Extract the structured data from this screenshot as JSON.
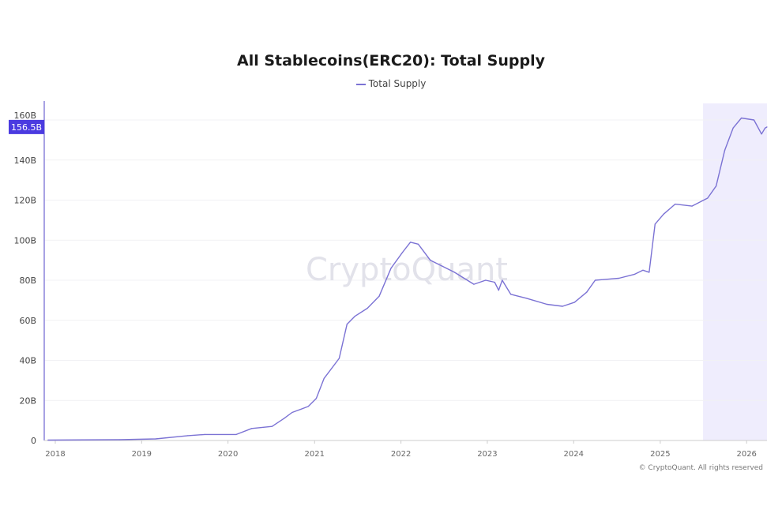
{
  "chart_data": {
    "type": "line",
    "title": "All Stablecoins(ERC20): Total Supply",
    "legend": {
      "position": "top-center",
      "entries": [
        "Total Supply"
      ]
    },
    "series": [
      {
        "name": "Total Supply",
        "color": "#7b72d4",
        "points": [
          [
            "2017-12-01",
            0.2
          ],
          [
            "2018-10-01",
            0.4
          ],
          [
            "2019-03-01",
            0.8
          ],
          [
            "2019-07-15",
            2.4
          ],
          [
            "2019-09-25",
            3
          ],
          [
            "2020-02-05",
            3
          ],
          [
            "2020-04-10",
            6
          ],
          [
            "2020-07-05",
            7
          ],
          [
            "2020-08-25",
            11
          ],
          [
            "2020-09-28",
            14
          ],
          [
            "2020-12-05",
            17
          ],
          [
            "2021-01-08",
            21
          ],
          [
            "2021-02-10",
            31
          ],
          [
            "2021-04-15",
            41
          ],
          [
            "2021-05-18",
            58
          ],
          [
            "2021-06-20",
            62
          ],
          [
            "2021-08-12",
            66
          ],
          [
            "2021-10-01",
            72
          ],
          [
            "2021-11-20",
            86
          ],
          [
            "2022-01-08",
            94
          ],
          [
            "2022-02-10",
            99
          ],
          [
            "2022-03-15",
            98
          ],
          [
            "2022-05-05",
            90
          ],
          [
            "2022-06-25",
            87
          ],
          [
            "2022-08-15",
            84
          ],
          [
            "2022-11-05",
            78
          ],
          [
            "2022-12-25",
            80
          ],
          [
            "2023-02-01",
            79
          ],
          [
            "2023-02-18",
            75
          ],
          [
            "2023-03-05",
            80
          ],
          [
            "2023-04-10",
            73
          ],
          [
            "2023-06-15",
            71
          ],
          [
            "2023-09-10",
            68
          ],
          [
            "2023-11-15",
            67
          ],
          [
            "2024-01-05",
            69
          ],
          [
            "2024-02-25",
            74
          ],
          [
            "2024-04-01",
            80
          ],
          [
            "2024-07-10",
            81
          ],
          [
            "2024-09-15",
            83
          ],
          [
            "2024-10-20",
            85
          ],
          [
            "2024-11-15",
            84
          ],
          [
            "2024-12-10",
            108
          ],
          [
            "2025-01-15",
            113
          ],
          [
            "2025-03-05",
            118
          ],
          [
            "2025-05-15",
            117
          ],
          [
            "2025-07-20",
            121
          ],
          [
            "2025-08-25",
            127
          ],
          [
            "2025-10-01",
            145
          ],
          [
            "2025-11-05",
            156
          ],
          [
            "2025-12-10",
            161
          ],
          [
            "2026-02-01",
            160
          ],
          [
            "2026-03-05",
            153
          ],
          [
            "2026-03-20",
            156
          ],
          [
            "2026-03-28",
            156.5
          ]
        ]
      }
    ],
    "current_value_label": "156.5B",
    "x_ticks": [
      "2018",
      "2019",
      "2020",
      "2021",
      "2022",
      "2023",
      "2024",
      "2025",
      "2026"
    ],
    "y_ticks": [
      {
        "value": 0,
        "label": "0"
      },
      {
        "value": 20,
        "label": "20B"
      },
      {
        "value": 40,
        "label": "40B"
      },
      {
        "value": 60,
        "label": "60B"
      },
      {
        "value": 80,
        "label": "80B"
      },
      {
        "value": 100,
        "label": "100B"
      },
      {
        "value": 120,
        "label": "120B"
      },
      {
        "value": 140,
        "label": "140B"
      },
      {
        "value": 160,
        "label": "160B"
      }
    ],
    "ylim": [
      0,
      160
    ],
    "xlim": [
      "2017-11-20",
      "2026-03-28"
    ],
    "shaded_region": {
      "start": "2025-07-01",
      "end": "2026-03-28",
      "color": "#efedfd"
    },
    "grid": "horizontal",
    "highlight_color": "#4b3be0",
    "watermark": "CryptoQuant",
    "copyright": "© CryptoQuant. All rights reserved"
  }
}
